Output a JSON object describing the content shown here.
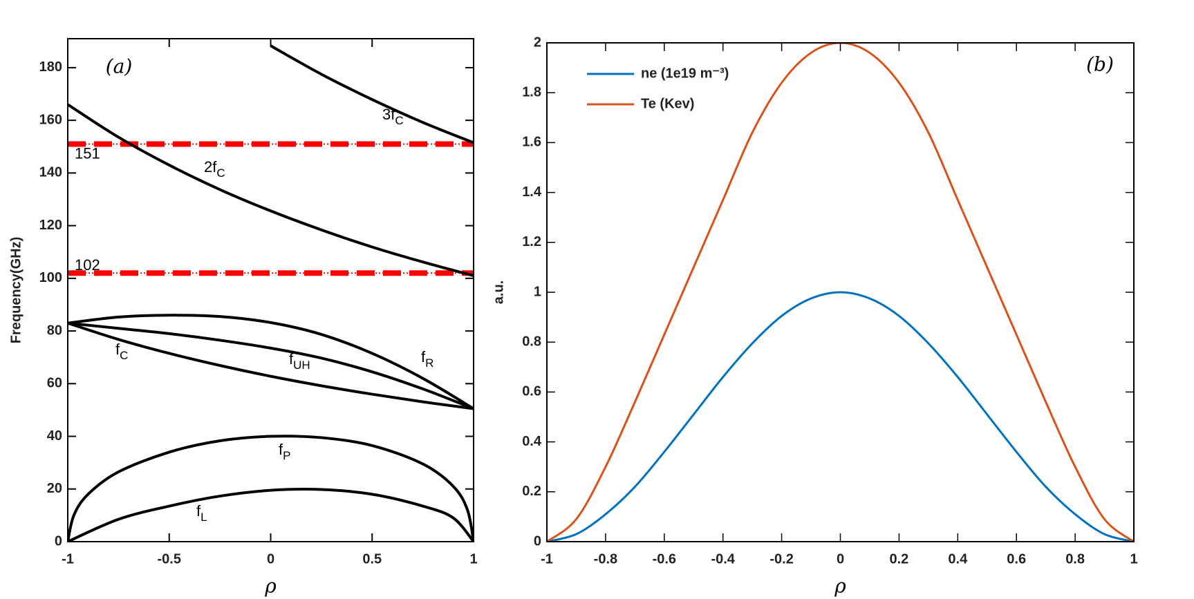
{
  "chart_data": [
    {
      "type": "line",
      "label": "(a)",
      "xlabel": "ρ",
      "ylabel": "Frequency(GHz)",
      "xlim": [
        -1,
        1
      ],
      "ylim": [
        0,
        191
      ],
      "xticks": [
        -1,
        -0.5,
        0,
        0.5,
        1
      ],
      "yticks": [
        0,
        20,
        40,
        60,
        80,
        100,
        120,
        140,
        160,
        180
      ],
      "series": [
        {
          "name": "3f",
          "subscript": "C",
          "color": "#000000",
          "x": [
            0,
            0.25,
            0.5,
            0.75,
            1
          ],
          "values": [
            188.3,
            177.5,
            167.9,
            159.2,
            151.5
          ]
        },
        {
          "name": "2f",
          "subscript": "C",
          "color": "#000000",
          "x": [
            -1,
            -0.75,
            -0.5,
            -0.25,
            0,
            0.25,
            0.5,
            0.75,
            1
          ],
          "values": [
            166,
            153.6,
            143,
            133.7,
            125.6,
            118.4,
            111.9,
            106.2,
            101
          ]
        },
        {
          "name": "f",
          "subscript": "C",
          "color": "#000000",
          "x": [
            -1,
            -0.75,
            -0.5,
            -0.25,
            0,
            0.25,
            0.5,
            0.75,
            1
          ],
          "values": [
            83,
            76.8,
            71.5,
            66.9,
            62.8,
            59.2,
            56,
            53.1,
            50.5
          ]
        },
        {
          "name": "f",
          "subscript": "UH",
          "color": "#000000",
          "x": [
            -1,
            -0.75,
            -0.5,
            -0.25,
            0,
            0.25,
            0.5,
            0.75,
            1
          ],
          "values": [
            83,
            81,
            79,
            76.5,
            73.5,
            69.7,
            64.5,
            58,
            50.5
          ]
        },
        {
          "name": "f",
          "subscript": "R",
          "color": "#000000",
          "x": [
            -1,
            -0.75,
            -0.5,
            -0.25,
            0,
            0.25,
            0.5,
            0.75,
            1
          ],
          "values": [
            83,
            85.3,
            86,
            85.5,
            83.2,
            78.7,
            71.5,
            62,
            50.5
          ]
        },
        {
          "name": "f",
          "subscript": "P",
          "color": "#000000",
          "x": [
            -1,
            -0.97,
            -0.9,
            -0.75,
            -0.5,
            -0.25,
            0,
            0.25,
            0.5,
            0.75,
            0.9,
            0.97,
            1
          ],
          "values": [
            0,
            10,
            18,
            26.5,
            34,
            38.3,
            40,
            39.5,
            36.5,
            29.5,
            21,
            12,
            0
          ]
        },
        {
          "name": "f",
          "subscript": "L",
          "color": "#000000",
          "x": [
            -1,
            -0.75,
            -0.5,
            -0.25,
            0,
            0.25,
            0.5,
            0.75,
            0.9,
            1
          ],
          "values": [
            0,
            8.5,
            13.5,
            17.3,
            19.5,
            19.8,
            18,
            13.5,
            9,
            0
          ]
        }
      ],
      "hlines": {
        "color": "#ff0000",
        "values": [
          151,
          102
        ]
      }
    },
    {
      "type": "line",
      "label": "(b)",
      "xlabel": "ρ",
      "ylabel": "a.u.",
      "xlim": [
        -1,
        1
      ],
      "ylim": [
        0,
        2
      ],
      "xticks": [
        -1,
        -0.8,
        -0.6,
        -0.4,
        -0.2,
        0,
        0.2,
        0.4,
        0.6,
        0.8,
        1
      ],
      "yticks": [
        0,
        0.2,
        0.4,
        0.6,
        0.8,
        1,
        1.2,
        1.4,
        1.6,
        1.8,
        2
      ],
      "legend": "upper left",
      "series": [
        {
          "name": "ne (1e19 m⁻³)",
          "color": "#0072bd",
          "x": [
            -1,
            -0.9,
            -0.8,
            -0.7,
            -0.6,
            -0.5,
            -0.4,
            -0.3,
            -0.2,
            -0.1,
            0,
            0.1,
            0.2,
            0.3,
            0.4,
            0.5,
            0.6,
            0.7,
            0.8,
            0.9,
            1
          ],
          "values": [
            0,
            0.03,
            0.11,
            0.22,
            0.36,
            0.51,
            0.66,
            0.795,
            0.905,
            0.975,
            1,
            0.975,
            0.905,
            0.795,
            0.66,
            0.51,
            0.36,
            0.22,
            0.11,
            0.03,
            0
          ]
        },
        {
          "name": "Te (Kev)",
          "color": "#d95319",
          "x": [
            -1,
            -0.9,
            -0.8,
            -0.7,
            -0.6,
            -0.5,
            -0.4,
            -0.3,
            -0.2,
            -0.1,
            0,
            0.1,
            0.2,
            0.3,
            0.4,
            0.5,
            0.6,
            0.7,
            0.8,
            0.9,
            1
          ],
          "values": [
            0,
            0.09,
            0.3,
            0.56,
            0.83,
            1.1,
            1.37,
            1.64,
            1.84,
            1.96,
            2,
            1.96,
            1.84,
            1.64,
            1.37,
            1.1,
            0.83,
            0.56,
            0.3,
            0.09,
            0
          ]
        }
      ]
    }
  ]
}
